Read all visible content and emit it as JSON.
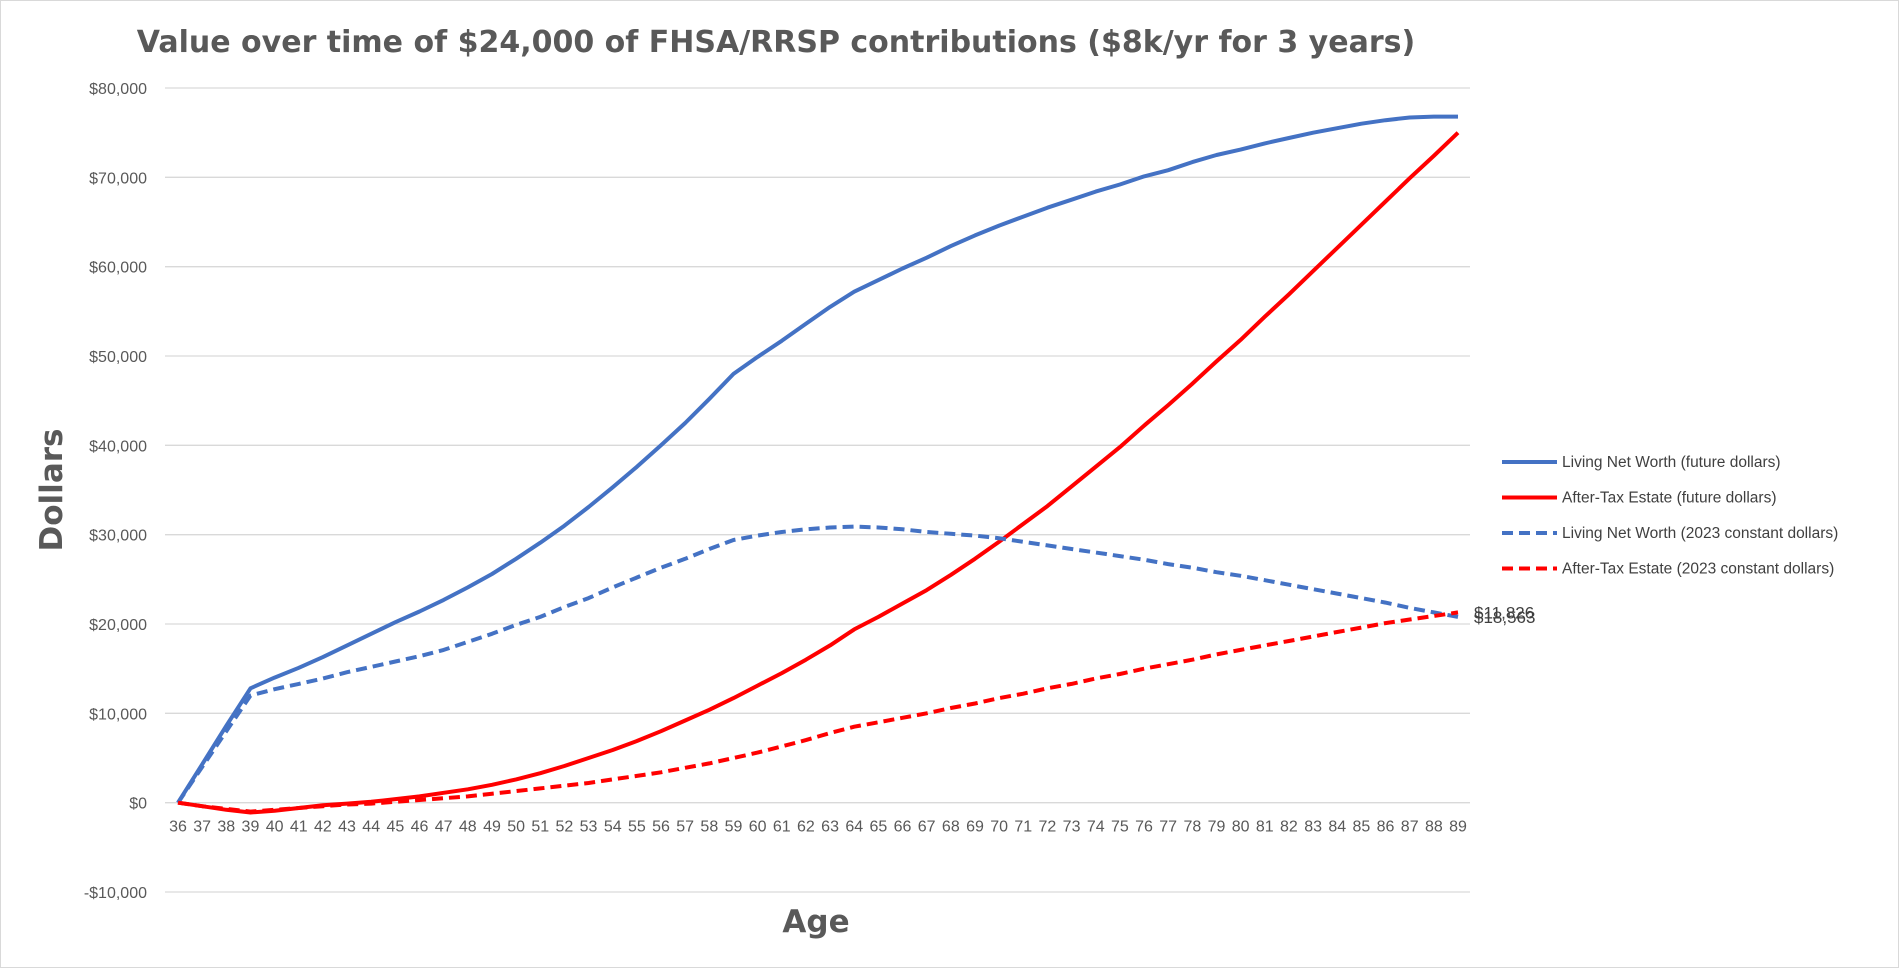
{
  "chart_data": {
    "type": "line",
    "title": "Value over time of $24,000 of FHSA/RRSP contributions  ($8k/yr for 3 years)",
    "xlabel": "Age",
    "ylabel": "Dollars",
    "ylim": [
      -10000,
      80000
    ],
    "y_ticks": [
      -10000,
      0,
      10000,
      20000,
      30000,
      40000,
      50000,
      60000,
      70000,
      80000
    ],
    "y_tick_labels": [
      "-$10,000",
      "$0",
      "$10,000",
      "$20,000",
      "$30,000",
      "$40,000",
      "$50,000",
      "$60,000",
      "$70,000",
      "$80,000"
    ],
    "grid": true,
    "legend_position": "right",
    "x": [
      36,
      37,
      38,
      39,
      40,
      41,
      42,
      43,
      44,
      45,
      46,
      47,
      48,
      49,
      50,
      51,
      52,
      53,
      54,
      55,
      56,
      57,
      58,
      59,
      60,
      61,
      62,
      63,
      64,
      65,
      66,
      67,
      68,
      69,
      70,
      71,
      72,
      73,
      74,
      75,
      76,
      77,
      78,
      79,
      80,
      81,
      82,
      83,
      84,
      85,
      86,
      87,
      88,
      89
    ],
    "series": [
      {
        "name": "Living Net Worth (future dollars)",
        "color": "#4472c4",
        "dash": "solid",
        "values": [
          0,
          4300,
          8600,
          12800,
          14000,
          15100,
          16300,
          17600,
          18900,
          20200,
          21400,
          22700,
          24100,
          25600,
          27300,
          29100,
          31000,
          33100,
          35300,
          37600,
          40000,
          42500,
          45200,
          48000,
          49900,
          51700,
          53600,
          55500,
          57200,
          58500,
          59800,
          61000,
          62300,
          63500,
          64600,
          65600,
          66600,
          67500,
          68400,
          69200,
          70100,
          70800,
          71700,
          72500,
          73100,
          73800,
          74400,
          75000,
          75500,
          76000,
          76400,
          76700,
          76800,
          76800
        ]
      },
      {
        "name": "After-Tax Estate (future dollars)",
        "color": "#ff0000",
        "dash": "solid",
        "values": [
          0,
          -400,
          -800,
          -1100,
          -900,
          -600,
          -300,
          -100,
          100,
          400,
          700,
          1100,
          1500,
          2000,
          2600,
          3300,
          4100,
          5000,
          5900,
          6900,
          8000,
          9200,
          10400,
          11700,
          13100,
          14500,
          16000,
          17600,
          19400,
          20800,
          22300,
          23800,
          25500,
          27300,
          29200,
          31200,
          33200,
          35400,
          37600,
          39800,
          42200,
          44500,
          46900,
          49400,
          51800,
          54400,
          56900,
          59500,
          62100,
          64700,
          67300,
          69900,
          72400,
          75000
        ]
      },
      {
        "name": "Living Net Worth (2023 constant dollars)",
        "color": "#4472c4",
        "dash": "dashed",
        "values": [
          0,
          4000,
          8000,
          12000,
          12700,
          13300,
          13900,
          14600,
          15200,
          15800,
          16400,
          17100,
          18000,
          18900,
          19900,
          20800,
          21900,
          22900,
          24100,
          25200,
          26300,
          27300,
          28400,
          29400,
          29900,
          30300,
          30600,
          30800,
          30900,
          30800,
          30600,
          30300,
          30100,
          29900,
          29600,
          29200,
          28800,
          28400,
          28000,
          27600,
          27200,
          26700,
          26300,
          25800,
          25400,
          24900,
          24400,
          23900,
          23400,
          22900,
          22400,
          21800,
          21300,
          20800
        ]
      },
      {
        "name": "After-Tax Estate (2023 constant dollars)",
        "color": "#ff0000",
        "dash": "dashed",
        "values": [
          0,
          -400,
          -700,
          -1000,
          -800,
          -600,
          -400,
          -200,
          -100,
          100,
          300,
          500,
          700,
          1000,
          1300,
          1600,
          1900,
          2200,
          2600,
          3000,
          3400,
          3900,
          4400,
          5000,
          5600,
          6300,
          7000,
          7800,
          8500,
          9000,
          9500,
          10000,
          10600,
          11100,
          11700,
          12200,
          12800,
          13300,
          13900,
          14400,
          15000,
          15500,
          16000,
          16600,
          17100,
          17600,
          18100,
          18600,
          19100,
          19600,
          20100,
          20500,
          20900,
          21300
        ]
      }
    ],
    "annotations": [
      {
        "text": "$18,563",
        "series": 2
      },
      {
        "text": "$11,826",
        "series": 3
      }
    ]
  }
}
